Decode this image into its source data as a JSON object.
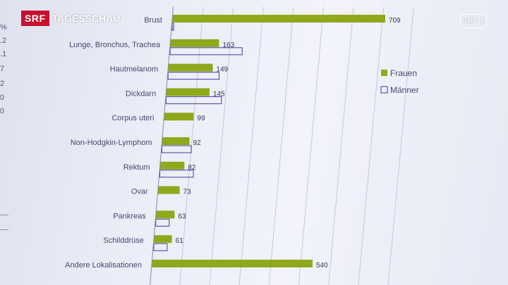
{
  "overlay": {
    "brand_box": "SRF",
    "brand_text": "TAGESSCHAU",
    "channel": "SRF 1"
  },
  "left_fragments": [
    "%",
    ".2",
    ".1",
    "7",
    "2",
    "0",
    "0"
  ],
  "colors": {
    "frauen": "#8fa81c",
    "maenner_border": "#3a3f9e",
    "grid": "#b9bdd8",
    "label": "#444a6e"
  },
  "chart_data": {
    "type": "bar",
    "orientation": "horizontal",
    "categories": [
      "Brust",
      "Lunge, Bronchus, Trachea",
      "Hautmelanom",
      "Dickdarn",
      "Corpus uteri",
      "Non-Hodgkin-Lymphom",
      "Rektum",
      "Ovar",
      "Pankreas",
      "Schilddrüse",
      "Andere Lokalisationen"
    ],
    "series": [
      {
        "name": "Frauen",
        "values": [
          709,
          163,
          149,
          145,
          99,
          92,
          82,
          73,
          63,
          61,
          540
        ]
      },
      {
        "name": "Männer",
        "values": [
          5,
          240,
          170,
          185,
          0,
          98,
          112,
          0,
          45,
          45,
          0
        ]
      }
    ],
    "xlim": [
      0,
      800
    ],
    "grid": true,
    "legend": "right"
  }
}
